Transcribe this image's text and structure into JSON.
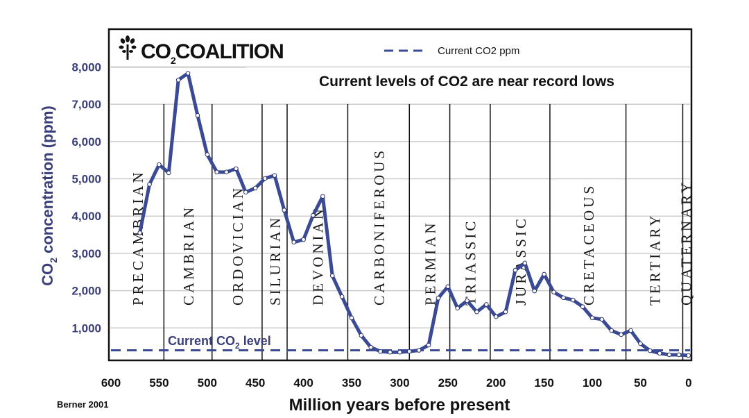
{
  "chart_data": {
    "type": "line",
    "brand": "CO2COALITION",
    "brand_main_prefix": "CO",
    "brand_sub": "2",
    "brand_suffix": "COALITION",
    "title": "Current levels of CO2 are near record lows",
    "legend": {
      "entries": [
        {
          "label": "Current CO2 ppm",
          "style": "dashed"
        }
      ],
      "position": "top-right"
    },
    "xlabel": "Million years before present",
    "ylabel_prefix": "CO",
    "ylabel_sub": "2",
    "ylabel_suffix": " concentration (ppm)",
    "xlim": [
      600,
      0
    ],
    "ylim": [
      0,
      8300
    ],
    "x_ticks": [
      600,
      550,
      500,
      450,
      400,
      350,
      300,
      250,
      200,
      150,
      100,
      50,
      0
    ],
    "x_tick_labels": [
      "600",
      "550",
      "500",
      "450",
      "400",
      "350",
      "300",
      "250",
      "200",
      "150",
      "100",
      "50",
      "0"
    ],
    "y_ticks": [
      1000,
      2000,
      3000,
      4000,
      5000,
      6000,
      7000,
      8000
    ],
    "y_tick_labels": [
      "1,000",
      "2,000",
      "3,000",
      "4,000",
      "5,000",
      "6,000",
      "7,000",
      "8,000"
    ],
    "grid": true,
    "current_level": {
      "value": 400,
      "label_prefix": "Current CO",
      "label_sub": "2",
      "label_suffix": " level"
    },
    "source": "Berner 2001",
    "colors": {
      "series": "#3b4a94",
      "current_line": "#3b4a94",
      "axis_text": "#3a3f7a",
      "grid": "#cccccc"
    },
    "periods": [
      {
        "name": "PRECAMBRIAN",
        "start": 600,
        "end": 545
      },
      {
        "name": "CAMBRIAN",
        "start": 545,
        "end": 495
      },
      {
        "name": "ORDOVICIAN",
        "start": 495,
        "end": 443
      },
      {
        "name": "SILURIAN",
        "start": 443,
        "end": 417
      },
      {
        "name": "DEVONIAN",
        "start": 417,
        "end": 354
      },
      {
        "name": "CARBONIFEROUS",
        "start": 354,
        "end": 290
      },
      {
        "name": "PERMIAN",
        "start": 290,
        "end": 248
      },
      {
        "name": "TRIASSIC",
        "start": 248,
        "end": 206
      },
      {
        "name": "JURASSIC",
        "start": 206,
        "end": 144
      },
      {
        "name": "CRETACEOUS",
        "start": 144,
        "end": 65
      },
      {
        "name": "TERTIARY",
        "start": 65,
        "end": 6
      },
      {
        "name": "QUATERNARY",
        "start": 6,
        "end": 0
      }
    ],
    "series": [
      {
        "name": "CO2 concentration (Berner 2001)",
        "x": [
          570,
          560,
          550,
          540,
          530,
          520,
          510,
          500,
          490,
          480,
          470,
          460,
          450,
          440,
          430,
          420,
          410,
          400,
          390,
          380,
          370,
          360,
          350,
          340,
          330,
          320,
          310,
          300,
          290,
          280,
          270,
          260,
          250,
          240,
          230,
          220,
          210,
          200,
          190,
          180,
          170,
          160,
          150,
          140,
          130,
          120,
          110,
          100,
          90,
          80,
          70,
          60,
          50,
          40,
          30,
          20,
          10,
          0
        ],
        "values": [
          3550,
          4850,
          5380,
          5160,
          7650,
          7830,
          6700,
          5650,
          5180,
          5180,
          5270,
          4640,
          4750,
          5010,
          5090,
          4160,
          3300,
          3370,
          4020,
          4530,
          2400,
          1840,
          1270,
          800,
          480,
          370,
          350,
          350,
          370,
          400,
          540,
          1800,
          2110,
          1530,
          1730,
          1430,
          1630,
          1300,
          1430,
          2550,
          2740,
          1990,
          2440,
          1960,
          1810,
          1750,
          1570,
          1270,
          1230,
          930,
          820,
          930,
          580,
          390,
          320,
          280,
          280,
          260
        ]
      }
    ]
  }
}
